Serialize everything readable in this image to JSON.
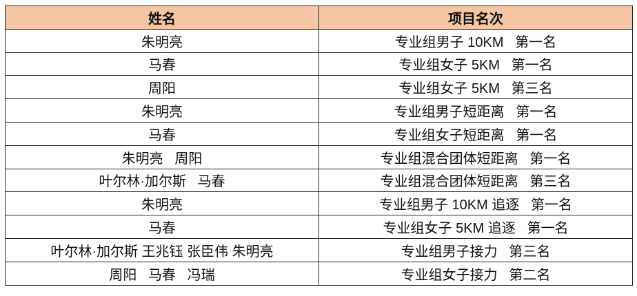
{
  "header": {
    "name": "姓名",
    "result": "项目名次",
    "header_color": "#f5c6a5"
  },
  "rows": [
    {
      "name": "朱明亮",
      "result": "专业组男子 10KM   第一名"
    },
    {
      "name": "马春",
      "result": "专业组女子 5KM   第一名"
    },
    {
      "name": "周阳",
      "result": "专业组女子 5KM   第三名"
    },
    {
      "name": "朱明亮",
      "result": "专业组男子短距离   第一名"
    },
    {
      "name": "马春",
      "result": "专业组女子短距离   第一名"
    },
    {
      "name": "朱明亮   周阳",
      "result": "专业组混合团体短距离   第一名"
    },
    {
      "name": "叶尔林·加尔斯   马春",
      "result": "专业组混合团体短距离   第三名"
    },
    {
      "name": "朱明亮",
      "result": "专业组男子 10KM 追逐   第一名"
    },
    {
      "name": "马春",
      "result": "专业组女子 5KM 追逐   第一名"
    },
    {
      "name": "叶尔林·加尔斯 王兆钰 张臣伟 朱明亮",
      "result": "专业组男子接力   第三名"
    },
    {
      "name": "周阳   马春   冯瑞",
      "result": "专业组女子接力   第二名"
    }
  ]
}
